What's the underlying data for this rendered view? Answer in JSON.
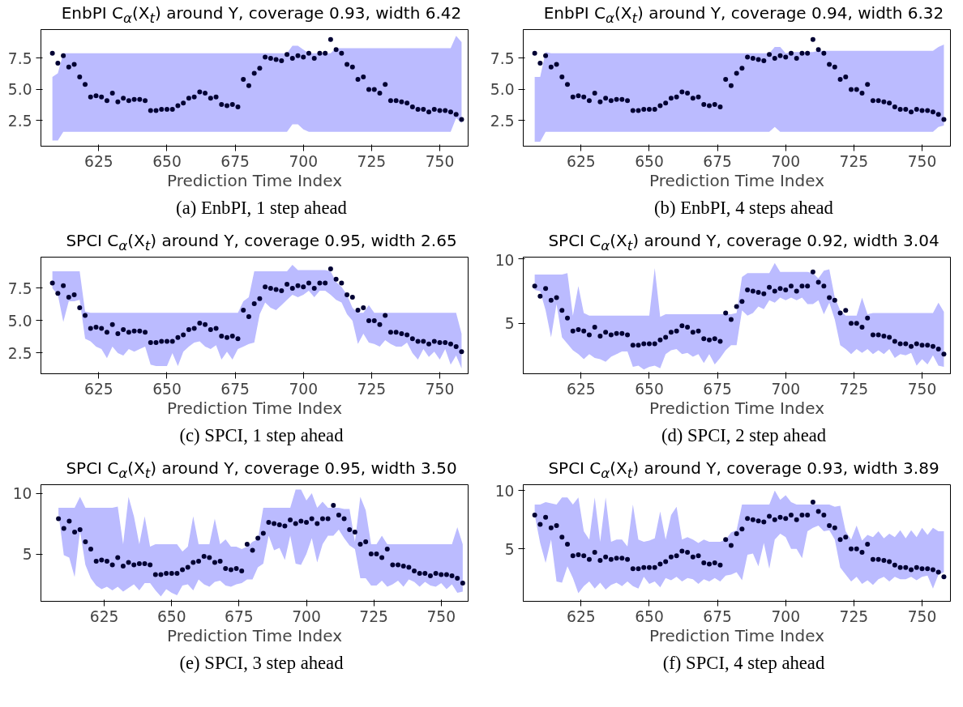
{
  "chart_data": [
    {
      "type": "scatter",
      "title": "EnbPI C$_{α}$(X$_{t}$) around Y, coverage 0.93, width 6.42",
      "xlabel": "Prediction Time Index",
      "annotations": [
        "(a) EnbPI, 1 step ahead"
      ],
      "xlim": [
        603.8,
        760.4
      ],
      "xticks": [
        625,
        650,
        675,
        700,
        725,
        750
      ],
      "ylim": [
        0.45,
        9.8
      ],
      "yticks": [
        {
          "value": 2.5,
          "label": "2.5"
        },
        {
          "value": 5,
          "label": "5.0"
        },
        {
          "value": 7.5,
          "label": "7.5"
        }
      ],
      "marker": "circle",
      "x": [
        608,
        610,
        612,
        614,
        616,
        618,
        620,
        622,
        624,
        626,
        628,
        630,
        632,
        634,
        636,
        638,
        640,
        642,
        644,
        646,
        648,
        650,
        652,
        654,
        656,
        658,
        660,
        662,
        664,
        666,
        668,
        670,
        672,
        674,
        676,
        678,
        680,
        682,
        684,
        686,
        688,
        690,
        692,
        694,
        696,
        698,
        700,
        702,
        704,
        706,
        708,
        710,
        712,
        714,
        716,
        718,
        720,
        722,
        724,
        726,
        728,
        730,
        732,
        734,
        736,
        738,
        740,
        742,
        744,
        746,
        748,
        750,
        752,
        754,
        756,
        758
      ],
      "series": [
        {
          "color": "#000033",
          "values": [
            7.9,
            7.1,
            7.7,
            6.8,
            7.0,
            6.0,
            5.4,
            4.4,
            4.5,
            4.4,
            4.1,
            4.7,
            4.0,
            4.3,
            4.1,
            4.2,
            4.2,
            4.1,
            3.3,
            3.3,
            3.4,
            3.4,
            3.4,
            3.7,
            3.9,
            4.3,
            4.4,
            4.8,
            4.7,
            4.3,
            4.4,
            3.8,
            3.7,
            3.8,
            3.6,
            5.8,
            5.3,
            6.3,
            6.7,
            7.6,
            7.5,
            7.4,
            7.3,
            7.8,
            7.5,
            7.7,
            7.6,
            7.9,
            7.5,
            7.9,
            7.9,
            9.0,
            8.2,
            7.9,
            7.0,
            6.8,
            5.8,
            6.0,
            5.0,
            5.0,
            4.7,
            5.4,
            4.1,
            4.1,
            4.0,
            3.9,
            3.6,
            3.4,
            3.4,
            3.2,
            3.4,
            3.3,
            3.3,
            3.2,
            3.0,
            2.6
          ],
          "lower": [
            0.9,
            0.9,
            1.6,
            1.6,
            1.6,
            1.6,
            1.6,
            1.6,
            1.6,
            1.6,
            1.6,
            1.6,
            1.6,
            1.6,
            1.6,
            1.6,
            1.6,
            1.6,
            1.6,
            1.6,
            1.6,
            1.6,
            1.6,
            1.6,
            1.6,
            1.6,
            1.6,
            1.6,
            1.6,
            1.6,
            1.6,
            1.6,
            1.6,
            1.6,
            1.6,
            1.6,
            1.6,
            1.6,
            1.6,
            1.6,
            1.6,
            1.6,
            1.6,
            1.6,
            2.2,
            2.2,
            1.8,
            1.6,
            1.6,
            1.6,
            1.6,
            1.6,
            1.6,
            1.6,
            1.6,
            1.6,
            1.6,
            1.6,
            1.6,
            1.6,
            1.6,
            1.6,
            1.6,
            1.6,
            1.6,
            1.6,
            1.6,
            1.6,
            1.6,
            1.6,
            1.6,
            1.6,
            1.6,
            1.6,
            2.7,
            2.3
          ],
          "upper": [
            6.0,
            6.3,
            7.9,
            7.9,
            7.9,
            7.9,
            7.9,
            7.9,
            7.9,
            7.9,
            7.9,
            7.9,
            7.9,
            7.9,
            7.9,
            7.9,
            7.9,
            7.9,
            7.9,
            7.9,
            7.9,
            7.9,
            7.9,
            7.9,
            7.9,
            7.9,
            7.9,
            7.9,
            7.9,
            7.9,
            7.9,
            7.9,
            7.9,
            7.9,
            7.9,
            7.9,
            7.9,
            7.9,
            7.9,
            7.9,
            7.9,
            7.9,
            7.9,
            7.9,
            8.5,
            8.5,
            8.2,
            7.9,
            7.9,
            7.9,
            7.9,
            7.9,
            8.3,
            8.3,
            8.3,
            8.3,
            8.3,
            8.3,
            8.3,
            8.3,
            8.3,
            8.3,
            8.3,
            8.3,
            8.3,
            8.3,
            8.3,
            8.3,
            8.3,
            8.3,
            8.3,
            8.3,
            8.3,
            8.3,
            9.3,
            8.8
          ]
        }
      ]
    },
    {
      "type": "scatter",
      "title": "EnbPI C$_{α}$(X$_{t}$) around Y, coverage 0.94, width 6.32",
      "xlabel": "Prediction Time Index",
      "annotations": [
        "(b) EnbPI, 4 steps ahead"
      ],
      "xlim": [
        603.8,
        760.4
      ],
      "xticks": [
        625,
        650,
        675,
        700,
        725,
        750
      ],
      "ylim": [
        0.45,
        9.8
      ],
      "yticks": [
        {
          "value": 2.5,
          "label": "2.5"
        },
        {
          "value": 5,
          "label": "5.0"
        },
        {
          "value": 7.5,
          "label": "7.5"
        }
      ],
      "marker": "circle",
      "x": [
        608,
        610,
        612,
        614,
        616,
        618,
        620,
        622,
        624,
        626,
        628,
        630,
        632,
        634,
        636,
        638,
        640,
        642,
        644,
        646,
        648,
        650,
        652,
        654,
        656,
        658,
        660,
        662,
        664,
        666,
        668,
        670,
        672,
        674,
        676,
        678,
        680,
        682,
        684,
        686,
        688,
        690,
        692,
        694,
        696,
        698,
        700,
        702,
        704,
        706,
        708,
        710,
        712,
        714,
        716,
        718,
        720,
        722,
        724,
        726,
        728,
        730,
        732,
        734,
        736,
        738,
        740,
        742,
        744,
        746,
        748,
        750,
        752,
        754,
        756,
        758
      ],
      "series": [
        {
          "color": "#000033",
          "values": [
            7.9,
            7.1,
            7.7,
            6.8,
            7.0,
            6.0,
            5.4,
            4.4,
            4.5,
            4.4,
            4.1,
            4.7,
            4.0,
            4.3,
            4.1,
            4.2,
            4.2,
            4.1,
            3.3,
            3.3,
            3.4,
            3.4,
            3.4,
            3.7,
            3.9,
            4.3,
            4.4,
            4.8,
            4.7,
            4.3,
            4.4,
            3.8,
            3.7,
            3.8,
            3.6,
            5.8,
            5.3,
            6.3,
            6.7,
            7.6,
            7.5,
            7.4,
            7.3,
            7.8,
            7.5,
            7.7,
            7.6,
            7.9,
            7.5,
            7.9,
            7.9,
            9.0,
            8.2,
            7.9,
            7.0,
            6.8,
            5.8,
            6.0,
            5.0,
            5.0,
            4.7,
            5.4,
            4.1,
            4.1,
            4.0,
            3.9,
            3.6,
            3.4,
            3.4,
            3.2,
            3.4,
            3.3,
            3.3,
            3.2,
            3.0,
            2.6
          ],
          "lower": [
            0.8,
            0.8,
            1.6,
            1.6,
            1.6,
            1.6,
            1.6,
            1.6,
            1.6,
            1.6,
            1.6,
            1.6,
            1.6,
            1.6,
            1.6,
            1.6,
            1.6,
            1.6,
            1.6,
            1.6,
            1.6,
            1.6,
            1.6,
            1.6,
            1.6,
            1.6,
            1.6,
            1.6,
            1.6,
            1.6,
            1.6,
            1.6,
            1.6,
            1.6,
            1.6,
            1.6,
            1.6,
            1.6,
            1.6,
            1.6,
            1.6,
            1.6,
            1.6,
            1.6,
            2.0,
            1.6,
            1.6,
            1.6,
            1.6,
            1.6,
            1.6,
            1.6,
            1.6,
            1.6,
            1.6,
            1.6,
            1.6,
            1.6,
            1.6,
            1.6,
            1.6,
            1.6,
            1.6,
            1.6,
            1.6,
            1.6,
            1.6,
            1.6,
            1.6,
            1.6,
            1.6,
            1.6,
            1.6,
            1.6,
            2.0,
            2.1
          ],
          "upper": [
            6.0,
            6.0,
            8.0,
            7.9,
            7.9,
            7.9,
            7.9,
            7.9,
            7.9,
            7.9,
            7.9,
            7.9,
            7.9,
            7.9,
            7.9,
            7.9,
            7.9,
            7.9,
            7.9,
            7.9,
            7.9,
            7.9,
            7.9,
            7.9,
            7.9,
            7.9,
            7.9,
            7.9,
            7.9,
            7.9,
            7.9,
            7.9,
            7.9,
            7.9,
            7.9,
            7.9,
            7.9,
            7.9,
            7.9,
            7.9,
            7.9,
            7.9,
            7.9,
            7.9,
            8.4,
            8.4,
            7.9,
            8.0,
            8.0,
            8.0,
            8.0,
            8.0,
            8.1,
            8.1,
            8.1,
            8.1,
            8.1,
            8.1,
            8.1,
            8.1,
            8.1,
            8.1,
            8.1,
            8.1,
            8.1,
            8.1,
            8.1,
            8.1,
            8.1,
            8.1,
            8.1,
            8.1,
            8.1,
            8.1,
            8.4,
            8.6
          ]
        }
      ]
    },
    {
      "type": "scatter",
      "title": "SPCI C$_{α}$(X$_{t}$) around Y, coverage 0.95, width 2.65",
      "xlabel": "Prediction Time Index",
      "annotations": [
        "(c) SPCI, 1 step ahead"
      ],
      "xlim": [
        603.8,
        760.4
      ],
      "xticks": [
        625,
        650,
        675,
        700,
        725,
        750
      ],
      "ylim": [
        0.9,
        9.9
      ],
      "yticks": [
        {
          "value": 2.5,
          "label": "2.5"
        },
        {
          "value": 5,
          "label": "5.0"
        },
        {
          "value": 7.5,
          "label": "7.5"
        }
      ],
      "marker": "circle",
      "x": [
        608,
        610,
        612,
        614,
        616,
        618,
        620,
        622,
        624,
        626,
        628,
        630,
        632,
        634,
        636,
        638,
        640,
        642,
        644,
        646,
        648,
        650,
        652,
        654,
        656,
        658,
        660,
        662,
        664,
        666,
        668,
        670,
        672,
        674,
        676,
        678,
        680,
        682,
        684,
        686,
        688,
        690,
        692,
        694,
        696,
        698,
        700,
        702,
        704,
        706,
        708,
        710,
        712,
        714,
        716,
        718,
        720,
        722,
        724,
        726,
        728,
        730,
        732,
        734,
        736,
        738,
        740,
        742,
        744,
        746,
        748,
        750,
        752,
        754,
        756,
        758
      ],
      "series": [
        {
          "color": "#000033",
          "values": [
            7.9,
            7.1,
            7.7,
            6.8,
            7.0,
            6.0,
            5.4,
            4.4,
            4.5,
            4.4,
            4.1,
            4.7,
            4.0,
            4.3,
            4.1,
            4.2,
            4.2,
            4.1,
            3.3,
            3.3,
            3.4,
            3.4,
            3.4,
            3.7,
            3.9,
            4.3,
            4.4,
            4.8,
            4.7,
            4.3,
            4.4,
            3.8,
            3.7,
            3.8,
            3.6,
            5.8,
            5.3,
            6.3,
            6.7,
            7.6,
            7.5,
            7.4,
            7.3,
            7.8,
            7.5,
            7.7,
            7.6,
            7.9,
            7.5,
            7.9,
            7.9,
            9.0,
            8.2,
            7.9,
            7.0,
            6.8,
            5.8,
            6.0,
            5.0,
            5.0,
            4.7,
            5.4,
            4.1,
            4.1,
            4.0,
            3.9,
            3.6,
            3.4,
            3.4,
            3.2,
            3.4,
            3.3,
            3.3,
            3.2,
            3.0,
            2.6
          ],
          "lower": [
            7.5,
            7.0,
            4.9,
            6.5,
            6.5,
            6.6,
            3.6,
            3.4,
            3.0,
            2.8,
            2.1,
            3.0,
            2.5,
            2.3,
            2.8,
            2.6,
            2.8,
            3.0,
            1.6,
            1.5,
            1.5,
            1.5,
            2.5,
            1.5,
            2.6,
            3.0,
            3.3,
            3.4,
            3.0,
            2.8,
            3.1,
            2.0,
            2.6,
            2.0,
            2.8,
            3.0,
            3.2,
            3.3,
            5.5,
            6.4,
            6.0,
            5.8,
            6.2,
            6.6,
            7.0,
            6.8,
            7.0,
            7.3,
            6.8,
            7.3,
            7.3,
            7.0,
            6.6,
            6.4,
            5.5,
            5.0,
            3.2,
            4.0,
            3.3,
            3.2,
            3.0,
            3.5,
            3.2,
            3.0,
            3.0,
            3.3,
            2.5,
            2.0,
            2.8,
            2.2,
            2.6,
            2.0,
            2.8,
            1.6,
            2.3,
            1.3
          ],
          "upper": [
            8.8,
            8.8,
            8.8,
            8.8,
            8.8,
            8.8,
            5.7,
            5.6,
            5.6,
            5.6,
            5.6,
            5.6,
            5.6,
            5.6,
            5.6,
            5.6,
            5.6,
            5.6,
            5.6,
            5.6,
            5.6,
            5.6,
            5.6,
            5.6,
            5.6,
            5.6,
            5.6,
            5.6,
            5.6,
            5.6,
            5.6,
            5.6,
            5.6,
            5.6,
            5.6,
            6.5,
            6.8,
            8.8,
            8.8,
            8.8,
            8.8,
            8.8,
            8.8,
            8.8,
            9.3,
            8.9,
            8.9,
            8.9,
            8.9,
            8.9,
            8.9,
            8.8,
            8.0,
            7.6,
            7.0,
            6.0,
            5.6,
            5.6,
            6.2,
            5.6,
            5.6,
            5.6,
            5.6,
            5.6,
            5.6,
            5.6,
            5.6,
            5.6,
            5.6,
            5.6,
            5.6,
            5.6,
            5.6,
            5.6,
            5.6,
            4.0
          ]
        }
      ]
    },
    {
      "type": "scatter",
      "title": "SPCI C$_{α}$(X$_{t}$) around Y, coverage 0.92, width 3.04",
      "xlabel": "Prediction Time Index",
      "annotations": [
        "(d) SPCI, 2 step ahead"
      ],
      "xlim": [
        603.8,
        760.4
      ],
      "xticks": [
        625,
        650,
        675,
        700,
        725,
        750
      ],
      "ylim": [
        1.07,
        10.15
      ],
      "yticks": [
        5,
        10
      ],
      "marker": "circle",
      "x": [
        608,
        610,
        612,
        614,
        616,
        618,
        620,
        622,
        624,
        626,
        628,
        630,
        632,
        634,
        636,
        638,
        640,
        642,
        644,
        646,
        648,
        650,
        652,
        654,
        656,
        658,
        660,
        662,
        664,
        666,
        668,
        670,
        672,
        674,
        676,
        678,
        680,
        682,
        684,
        686,
        688,
        690,
        692,
        694,
        696,
        698,
        700,
        702,
        704,
        706,
        708,
        710,
        712,
        714,
        716,
        718,
        720,
        722,
        724,
        726,
        728,
        730,
        732,
        734,
        736,
        738,
        740,
        742,
        744,
        746,
        748,
        750,
        752,
        754,
        756,
        758
      ],
      "series": [
        {
          "color": "#000033",
          "values": [
            7.9,
            7.1,
            7.7,
            6.8,
            7.0,
            6.0,
            5.4,
            4.4,
            4.5,
            4.4,
            4.1,
            4.7,
            4.0,
            4.3,
            4.1,
            4.2,
            4.2,
            4.1,
            3.3,
            3.3,
            3.4,
            3.4,
            3.4,
            3.7,
            3.9,
            4.3,
            4.4,
            4.8,
            4.7,
            4.3,
            4.4,
            3.8,
            3.7,
            3.8,
            3.6,
            5.8,
            5.3,
            6.3,
            6.7,
            7.6,
            7.5,
            7.4,
            7.3,
            7.8,
            7.5,
            7.7,
            7.6,
            7.9,
            7.5,
            7.9,
            7.9,
            9.0,
            8.2,
            7.9,
            7.0,
            6.8,
            5.8,
            6.0,
            5.0,
            5.0,
            4.7,
            5.4,
            4.1,
            4.1,
            4.0,
            3.9,
            3.6,
            3.4,
            3.4,
            3.2,
            3.4,
            3.3,
            3.3,
            3.2,
            3.0,
            2.6
          ],
          "lower": [
            7.6,
            7.5,
            6.0,
            3.9,
            6.5,
            3.9,
            3.4,
            2.9,
            2.6,
            2.2,
            2.6,
            2.3,
            2.2,
            2.0,
            2.4,
            2.6,
            2.8,
            2.8,
            1.6,
            1.7,
            1.4,
            1.6,
            1.7,
            1.5,
            2.6,
            2.9,
            3.0,
            2.6,
            2.7,
            2.4,
            2.6,
            1.9,
            2.6,
            1.8,
            2.3,
            2.9,
            3.3,
            3.3,
            6.0,
            5.6,
            5.8,
            6.3,
            6.1,
            6.8,
            6.6,
            7.0,
            6.8,
            7.0,
            6.8,
            7.0,
            6.5,
            6.5,
            6.8,
            5.7,
            6.6,
            5.3,
            3.3,
            3.0,
            2.6,
            3.0,
            2.7,
            3.0,
            2.6,
            2.9,
            2.6,
            3.0,
            2.3,
            2.6,
            2.5,
            2.7,
            1.7,
            2.2,
            1.8,
            2.5,
            1.7,
            1.6
          ],
          "upper": [
            8.8,
            8.8,
            8.8,
            8.8,
            8.8,
            8.8,
            8.9,
            5.6,
            7.9,
            5.8,
            5.6,
            5.6,
            5.6,
            5.6,
            5.6,
            5.6,
            5.6,
            5.6,
            5.6,
            5.6,
            5.6,
            5.6,
            9.3,
            5.5,
            5.7,
            5.7,
            5.7,
            5.7,
            5.7,
            5.7,
            5.7,
            5.7,
            5.7,
            5.7,
            5.7,
            5.7,
            5.7,
            5.8,
            8.6,
            8.9,
            8.9,
            8.9,
            8.9,
            8.9,
            9.7,
            9.0,
            9.0,
            9.0,
            9.0,
            9.0,
            9.0,
            8.9,
            8.5,
            9.1,
            9.2,
            7.0,
            6.0,
            5.6,
            5.6,
            5.6,
            7.0,
            5.7,
            5.8,
            5.8,
            5.8,
            5.8,
            5.8,
            5.8,
            5.8,
            5.8,
            5.8,
            5.8,
            5.8,
            5.8,
            6.6,
            5.9
          ]
        }
      ]
    },
    {
      "type": "scatter",
      "title": "SPCI C$_{α}$(X$_{t}$) around Y, coverage 0.95, width 3.50",
      "xlabel": "Prediction Time Index",
      "annotations": [
        "(e) SPCI, 3 step ahead"
      ],
      "xlim": [
        601.5,
        760
      ],
      "xticks": [
        625,
        650,
        675,
        700,
        725,
        750
      ],
      "ylim": [
        1.1,
        10.7
      ],
      "yticks": [
        5,
        10
      ],
      "marker": "circle",
      "x": [
        608,
        610,
        612,
        614,
        616,
        618,
        620,
        622,
        624,
        626,
        628,
        630,
        632,
        634,
        636,
        638,
        640,
        642,
        644,
        646,
        648,
        650,
        652,
        654,
        656,
        658,
        660,
        662,
        664,
        666,
        668,
        670,
        672,
        674,
        676,
        678,
        680,
        682,
        684,
        686,
        688,
        690,
        692,
        694,
        696,
        698,
        700,
        702,
        704,
        706,
        708,
        710,
        712,
        714,
        716,
        718,
        720,
        722,
        724,
        726,
        728,
        730,
        732,
        734,
        736,
        738,
        740,
        742,
        744,
        746,
        748,
        750,
        752,
        754,
        756,
        758
      ],
      "series": [
        {
          "color": "#000033",
          "values": [
            7.9,
            7.1,
            7.7,
            6.8,
            7.0,
            6.0,
            5.4,
            4.4,
            4.5,
            4.4,
            4.1,
            4.7,
            4.0,
            4.3,
            4.1,
            4.2,
            4.2,
            4.1,
            3.3,
            3.3,
            3.4,
            3.4,
            3.4,
            3.7,
            3.9,
            4.3,
            4.4,
            4.8,
            4.7,
            4.3,
            4.4,
            3.8,
            3.7,
            3.8,
            3.6,
            5.8,
            5.3,
            6.3,
            6.7,
            7.6,
            7.5,
            7.4,
            7.3,
            7.8,
            7.5,
            7.7,
            7.6,
            7.9,
            7.5,
            7.9,
            7.9,
            9.0,
            8.2,
            7.9,
            7.0,
            6.8,
            5.8,
            6.0,
            5.0,
            5.0,
            4.7,
            5.4,
            4.1,
            4.1,
            4.0,
            3.9,
            3.6,
            3.4,
            3.4,
            3.2,
            3.4,
            3.3,
            3.3,
            3.2,
            3.0,
            2.6
          ],
          "lower": [
            8.3,
            4.9,
            4.7,
            3.1,
            6.9,
            4.1,
            3.0,
            2.4,
            2.1,
            2.3,
            2.0,
            2.3,
            1.9,
            2.2,
            2.5,
            2.0,
            2.6,
            2.6,
            2.0,
            1.5,
            2.1,
            1.8,
            1.6,
            2.4,
            2.5,
            2.0,
            2.9,
            2.5,
            2.3,
            2.7,
            2.8,
            2.4,
            2.3,
            2.5,
            2.6,
            2.9,
            2.9,
            3.9,
            4.2,
            6.5,
            5.3,
            5.5,
            4.5,
            6.5,
            4.2,
            4.1,
            5.0,
            6.3,
            4.3,
            5.8,
            6.5,
            6.5,
            7.0,
            6.3,
            5.7,
            5.4,
            3.0,
            3.0,
            2.4,
            2.4,
            2.8,
            2.3,
            2.5,
            2.8,
            2.3,
            2.9,
            2.7,
            2.3,
            2.7,
            2.4,
            2.3,
            2.6,
            2.1,
            2.5,
            1.8,
            1.9
          ],
          "upper": [
            8.8,
            8.8,
            8.8,
            8.8,
            9.7,
            8.8,
            8.8,
            8.8,
            8.8,
            8.8,
            8.8,
            8.9,
            5.8,
            9.7,
            8.1,
            5.8,
            8.1,
            5.6,
            5.8,
            5.8,
            5.8,
            5.8,
            5.8,
            5.2,
            5.6,
            8.1,
            5.8,
            5.8,
            5.8,
            7.9,
            5.8,
            6.2,
            5.6,
            5.6,
            5.4,
            5.6,
            6.0,
            6.2,
            8.8,
            8.8,
            8.8,
            8.8,
            8.8,
            8.8,
            10.3,
            10.3,
            9.4,
            10.0,
            8.8,
            9.3,
            8.8,
            8.8,
            8.8,
            8.7,
            8.7,
            6.0,
            9.7,
            8.6,
            5.8,
            5.8,
            6.5,
            5.8,
            5.8,
            5.8,
            5.8,
            5.8,
            5.8,
            5.8,
            5.8,
            5.8,
            5.8,
            5.8,
            5.8,
            5.8,
            7.2,
            5.8
          ]
        }
      ]
    },
    {
      "type": "scatter",
      "title": "SPCI C$_{α}$(X$_{t}$) around Y, coverage 0.93, width 3.89",
      "xlabel": "Prediction Time Index",
      "annotations": [
        "(f) SPCI, 4 step ahead"
      ],
      "xlim": [
        603.8,
        760.4
      ],
      "xticks": [
        625,
        650,
        675,
        700,
        725,
        750
      ],
      "ylim": [
        0.5,
        10.5
      ],
      "yticks": [
        5,
        10
      ],
      "marker": "circle",
      "x": [
        608,
        610,
        612,
        614,
        616,
        618,
        620,
        622,
        624,
        626,
        628,
        630,
        632,
        634,
        636,
        638,
        640,
        642,
        644,
        646,
        648,
        650,
        652,
        654,
        656,
        658,
        660,
        662,
        664,
        666,
        668,
        670,
        672,
        674,
        676,
        678,
        680,
        682,
        684,
        686,
        688,
        690,
        692,
        694,
        696,
        698,
        700,
        702,
        704,
        706,
        708,
        710,
        712,
        714,
        716,
        718,
        720,
        722,
        724,
        726,
        728,
        730,
        732,
        734,
        736,
        738,
        740,
        742,
        744,
        746,
        748,
        750,
        752,
        754,
        756,
        758
      ],
      "series": [
        {
          "color": "#000033",
          "values": [
            7.9,
            7.1,
            7.7,
            6.8,
            7.0,
            6.0,
            5.4,
            4.4,
            4.5,
            4.4,
            4.1,
            4.7,
            4.0,
            4.3,
            4.1,
            4.2,
            4.2,
            4.1,
            3.3,
            3.3,
            3.4,
            3.4,
            3.4,
            3.7,
            3.9,
            4.3,
            4.4,
            4.8,
            4.7,
            4.3,
            4.4,
            3.8,
            3.7,
            3.8,
            3.6,
            5.8,
            5.3,
            6.3,
            6.7,
            7.6,
            7.5,
            7.4,
            7.3,
            7.8,
            7.5,
            7.7,
            7.6,
            7.9,
            7.5,
            7.9,
            7.9,
            9.0,
            8.2,
            7.9,
            7.0,
            6.8,
            5.8,
            6.0,
            5.0,
            5.0,
            4.7,
            5.4,
            4.1,
            4.1,
            4.0,
            3.9,
            3.6,
            3.4,
            3.4,
            3.2,
            3.4,
            3.3,
            3.3,
            3.2,
            3.0,
            2.6
          ],
          "lower": [
            7.9,
            5.5,
            3.8,
            5.8,
            2.2,
            2.1,
            3.5,
            2.5,
            1.2,
            1.8,
            2.2,
            1.6,
            2.1,
            1.5,
            1.9,
            2.1,
            1.8,
            2.2,
            1.8,
            1.6,
            2.6,
            2.0,
            2.2,
            1.7,
            2.5,
            2.3,
            2.6,
            2.2,
            2.5,
            2.4,
            2.0,
            2.4,
            2.2,
            2.5,
            2.2,
            2.7,
            2.8,
            3.0,
            2.3,
            4.5,
            4.6,
            3.5,
            5.5,
            3.3,
            5.8,
            6.3,
            6.0,
            5.0,
            5.0,
            4.2,
            6.5,
            6.8,
            7.0,
            6.5,
            6.6,
            5.8,
            3.4,
            2.8,
            2.2,
            2.6,
            2.0,
            2.3,
            1.9,
            2.4,
            2.6,
            2.2,
            2.6,
            2.4,
            2.4,
            2.6,
            2.3,
            2.6,
            2.7,
            1.6,
            2.8,
            3.0
          ],
          "upper": [
            8.8,
            8.8,
            9.0,
            8.9,
            8.8,
            9.4,
            9.4,
            8.8,
            9.4,
            6.5,
            5.8,
            9.4,
            5.6,
            9.4,
            5.6,
            5.8,
            5.8,
            5.2,
            8.8,
            5.8,
            5.6,
            5.7,
            5.9,
            8.2,
            5.8,
            7.9,
            8.6,
            5.8,
            6.0,
            5.8,
            5.5,
            5.8,
            5.6,
            5.6,
            5.6,
            5.8,
            6.4,
            6.6,
            8.8,
            8.8,
            8.8,
            8.8,
            8.8,
            8.8,
            10.0,
            9.2,
            9.6,
            9.0,
            8.8,
            8.8,
            8.8,
            8.8,
            8.8,
            8.8,
            8.8,
            8.6,
            8.7,
            6.5,
            5.8,
            7.0,
            5.7,
            6.2,
            6.0,
            6.5,
            5.9,
            6.3,
            6.0,
            6.6,
            5.9,
            6.6,
            6.0,
            6.8,
            6.2,
            6.8,
            6.5,
            6.5
          ]
        }
      ]
    }
  ]
}
